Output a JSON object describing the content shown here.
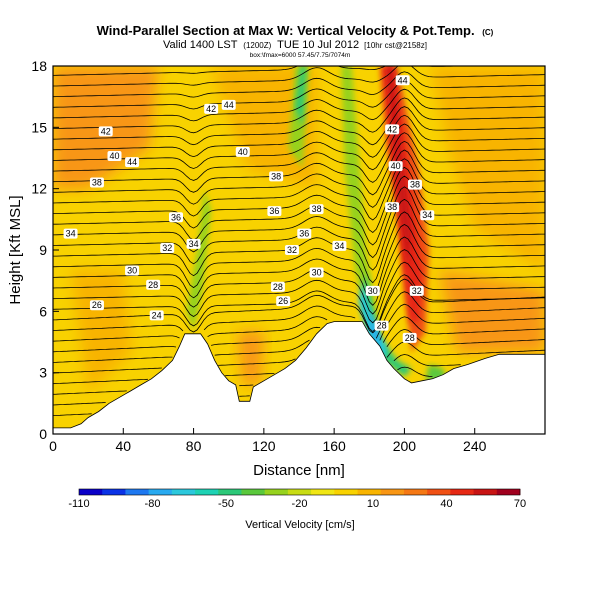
{
  "chart_data": {
    "type": "heatmap",
    "title": "Wind-Parallel Section at Max W: Vertical Velocity & Pot.Temp.",
    "title_mark": "(C)",
    "subtitle_main": "Valid 1400 LST",
    "subtitle_utc": "(1200Z)",
    "subtitle_date": "TUE 10 Jul 2012",
    "subtitle_model": "[10hr cst@2158z]",
    "subtitle_loc": "box:\\fmax=6000 57.45/7.75/7074m",
    "xlabel": "Distance [nm]",
    "ylabel": "Height [Kft MSL]",
    "xlim": [
      0,
      280
    ],
    "ylim": [
      0,
      18
    ],
    "xticks": [
      "0",
      "40",
      "80",
      "120",
      "160",
      "200",
      "240"
    ],
    "yticks": [
      "0",
      "3",
      "6",
      "9",
      "12",
      "15",
      "18"
    ],
    "field": "Vertical Velocity [cm/s]",
    "contour_field": "Potential Temperature (C)",
    "colorbar": {
      "label": "Vertical Velocity [cm/s]",
      "tick_labels": [
        "-110",
        "-80",
        "-50",
        "-20",
        "10",
        "40",
        "70"
      ],
      "colors": [
        "#0a00c8",
        "#0a32e6",
        "#1e78f0",
        "#28aaf0",
        "#2cc8dc",
        "#1ed2b4",
        "#2cc878",
        "#5ac83c",
        "#96d21e",
        "#c8dc14",
        "#f0e614",
        "#f8d200",
        "#f8b400",
        "#f89614",
        "#f57814",
        "#f05014",
        "#e62814",
        "#c81414",
        "#a0001e"
      ]
    },
    "contour_labels": [
      {
        "x": 45,
        "y": 13.3,
        "text": "44"
      },
      {
        "x": 30,
        "y": 14.8,
        "text": "42"
      },
      {
        "x": 35,
        "y": 13.6,
        "text": "40"
      },
      {
        "x": 25,
        "y": 12.3,
        "text": "38"
      },
      {
        "x": 10,
        "y": 9.8,
        "text": "34"
      },
      {
        "x": 100,
        "y": 16.1,
        "text": "44"
      },
      {
        "x": 90,
        "y": 15.9,
        "text": "42"
      },
      {
        "x": 108,
        "y": 13.8,
        "text": "40"
      },
      {
        "x": 127,
        "y": 12.6,
        "text": "38"
      },
      {
        "x": 150,
        "y": 11.0,
        "text": "38"
      },
      {
        "x": 126,
        "y": 10.9,
        "text": "36"
      },
      {
        "x": 143,
        "y": 9.8,
        "text": "36"
      },
      {
        "x": 70,
        "y": 10.6,
        "text": "36"
      },
      {
        "x": 80,
        "y": 9.3,
        "text": "34"
      },
      {
        "x": 163,
        "y": 9.2,
        "text": "34"
      },
      {
        "x": 65,
        "y": 9.1,
        "text": "32"
      },
      {
        "x": 136,
        "y": 9.0,
        "text": "32"
      },
      {
        "x": 45,
        "y": 8.0,
        "text": "30"
      },
      {
        "x": 150,
        "y": 7.9,
        "text": "30"
      },
      {
        "x": 57,
        "y": 7.3,
        "text": "28"
      },
      {
        "x": 128,
        "y": 7.2,
        "text": "28"
      },
      {
        "x": 25,
        "y": 6.3,
        "text": "26"
      },
      {
        "x": 131,
        "y": 6.5,
        "text": "26"
      },
      {
        "x": 59,
        "y": 5.8,
        "text": "24"
      },
      {
        "x": 182,
        "y": 7.0,
        "text": "30"
      },
      {
        "x": 187,
        "y": 5.3,
        "text": "28"
      },
      {
        "x": 203,
        "y": 4.7,
        "text": "28"
      },
      {
        "x": 207,
        "y": 7.0,
        "text": "32"
      },
      {
        "x": 193,
        "y": 11.1,
        "text": "38"
      },
      {
        "x": 206,
        "y": 12.2,
        "text": "38"
      },
      {
        "x": 195,
        "y": 13.1,
        "text": "40"
      },
      {
        "x": 193,
        "y": 14.9,
        "text": "42"
      },
      {
        "x": 199,
        "y": 17.3,
        "text": "44"
      },
      {
        "x": 213,
        "y": 10.7,
        "text": "34"
      }
    ],
    "terrain": [
      [
        0,
        0.3
      ],
      [
        10,
        0.3
      ],
      [
        16,
        0.5
      ],
      [
        20,
        0.8
      ],
      [
        26,
        1.1
      ],
      [
        32,
        1.5
      ],
      [
        38,
        1.8
      ],
      [
        44,
        2.1
      ],
      [
        50,
        2.4
      ],
      [
        56,
        2.7
      ],
      [
        62,
        3.1
      ],
      [
        68,
        3.6
      ],
      [
        72,
        4.3
      ],
      [
        75,
        4.9
      ],
      [
        80,
        4.9
      ],
      [
        84,
        4.9
      ],
      [
        88,
        4.4
      ],
      [
        92,
        3.6
      ],
      [
        96,
        3.0
      ],
      [
        100,
        2.6
      ],
      [
        104,
        2.4
      ],
      [
        106,
        1.6
      ],
      [
        112,
        1.6
      ],
      [
        114,
        2.3
      ],
      [
        120,
        2.6
      ],
      [
        126,
        2.9
      ],
      [
        132,
        3.2
      ],
      [
        138,
        3.6
      ],
      [
        144,
        4.2
      ],
      [
        150,
        4.9
      ],
      [
        156,
        5.4
      ],
      [
        160,
        5.5
      ],
      [
        176,
        5.5
      ],
      [
        180,
        4.9
      ],
      [
        186,
        4.3
      ],
      [
        190,
        3.6
      ],
      [
        194,
        3.2
      ],
      [
        200,
        2.7
      ],
      [
        204,
        2.5
      ],
      [
        210,
        2.6
      ],
      [
        216,
        2.7
      ],
      [
        222,
        2.9
      ],
      [
        228,
        3.2
      ],
      [
        236,
        3.4
      ],
      [
        246,
        3.7
      ],
      [
        254,
        3.9
      ],
      [
        264,
        3.9
      ],
      [
        274,
        3.9
      ],
      [
        280,
        3.9
      ]
    ]
  }
}
